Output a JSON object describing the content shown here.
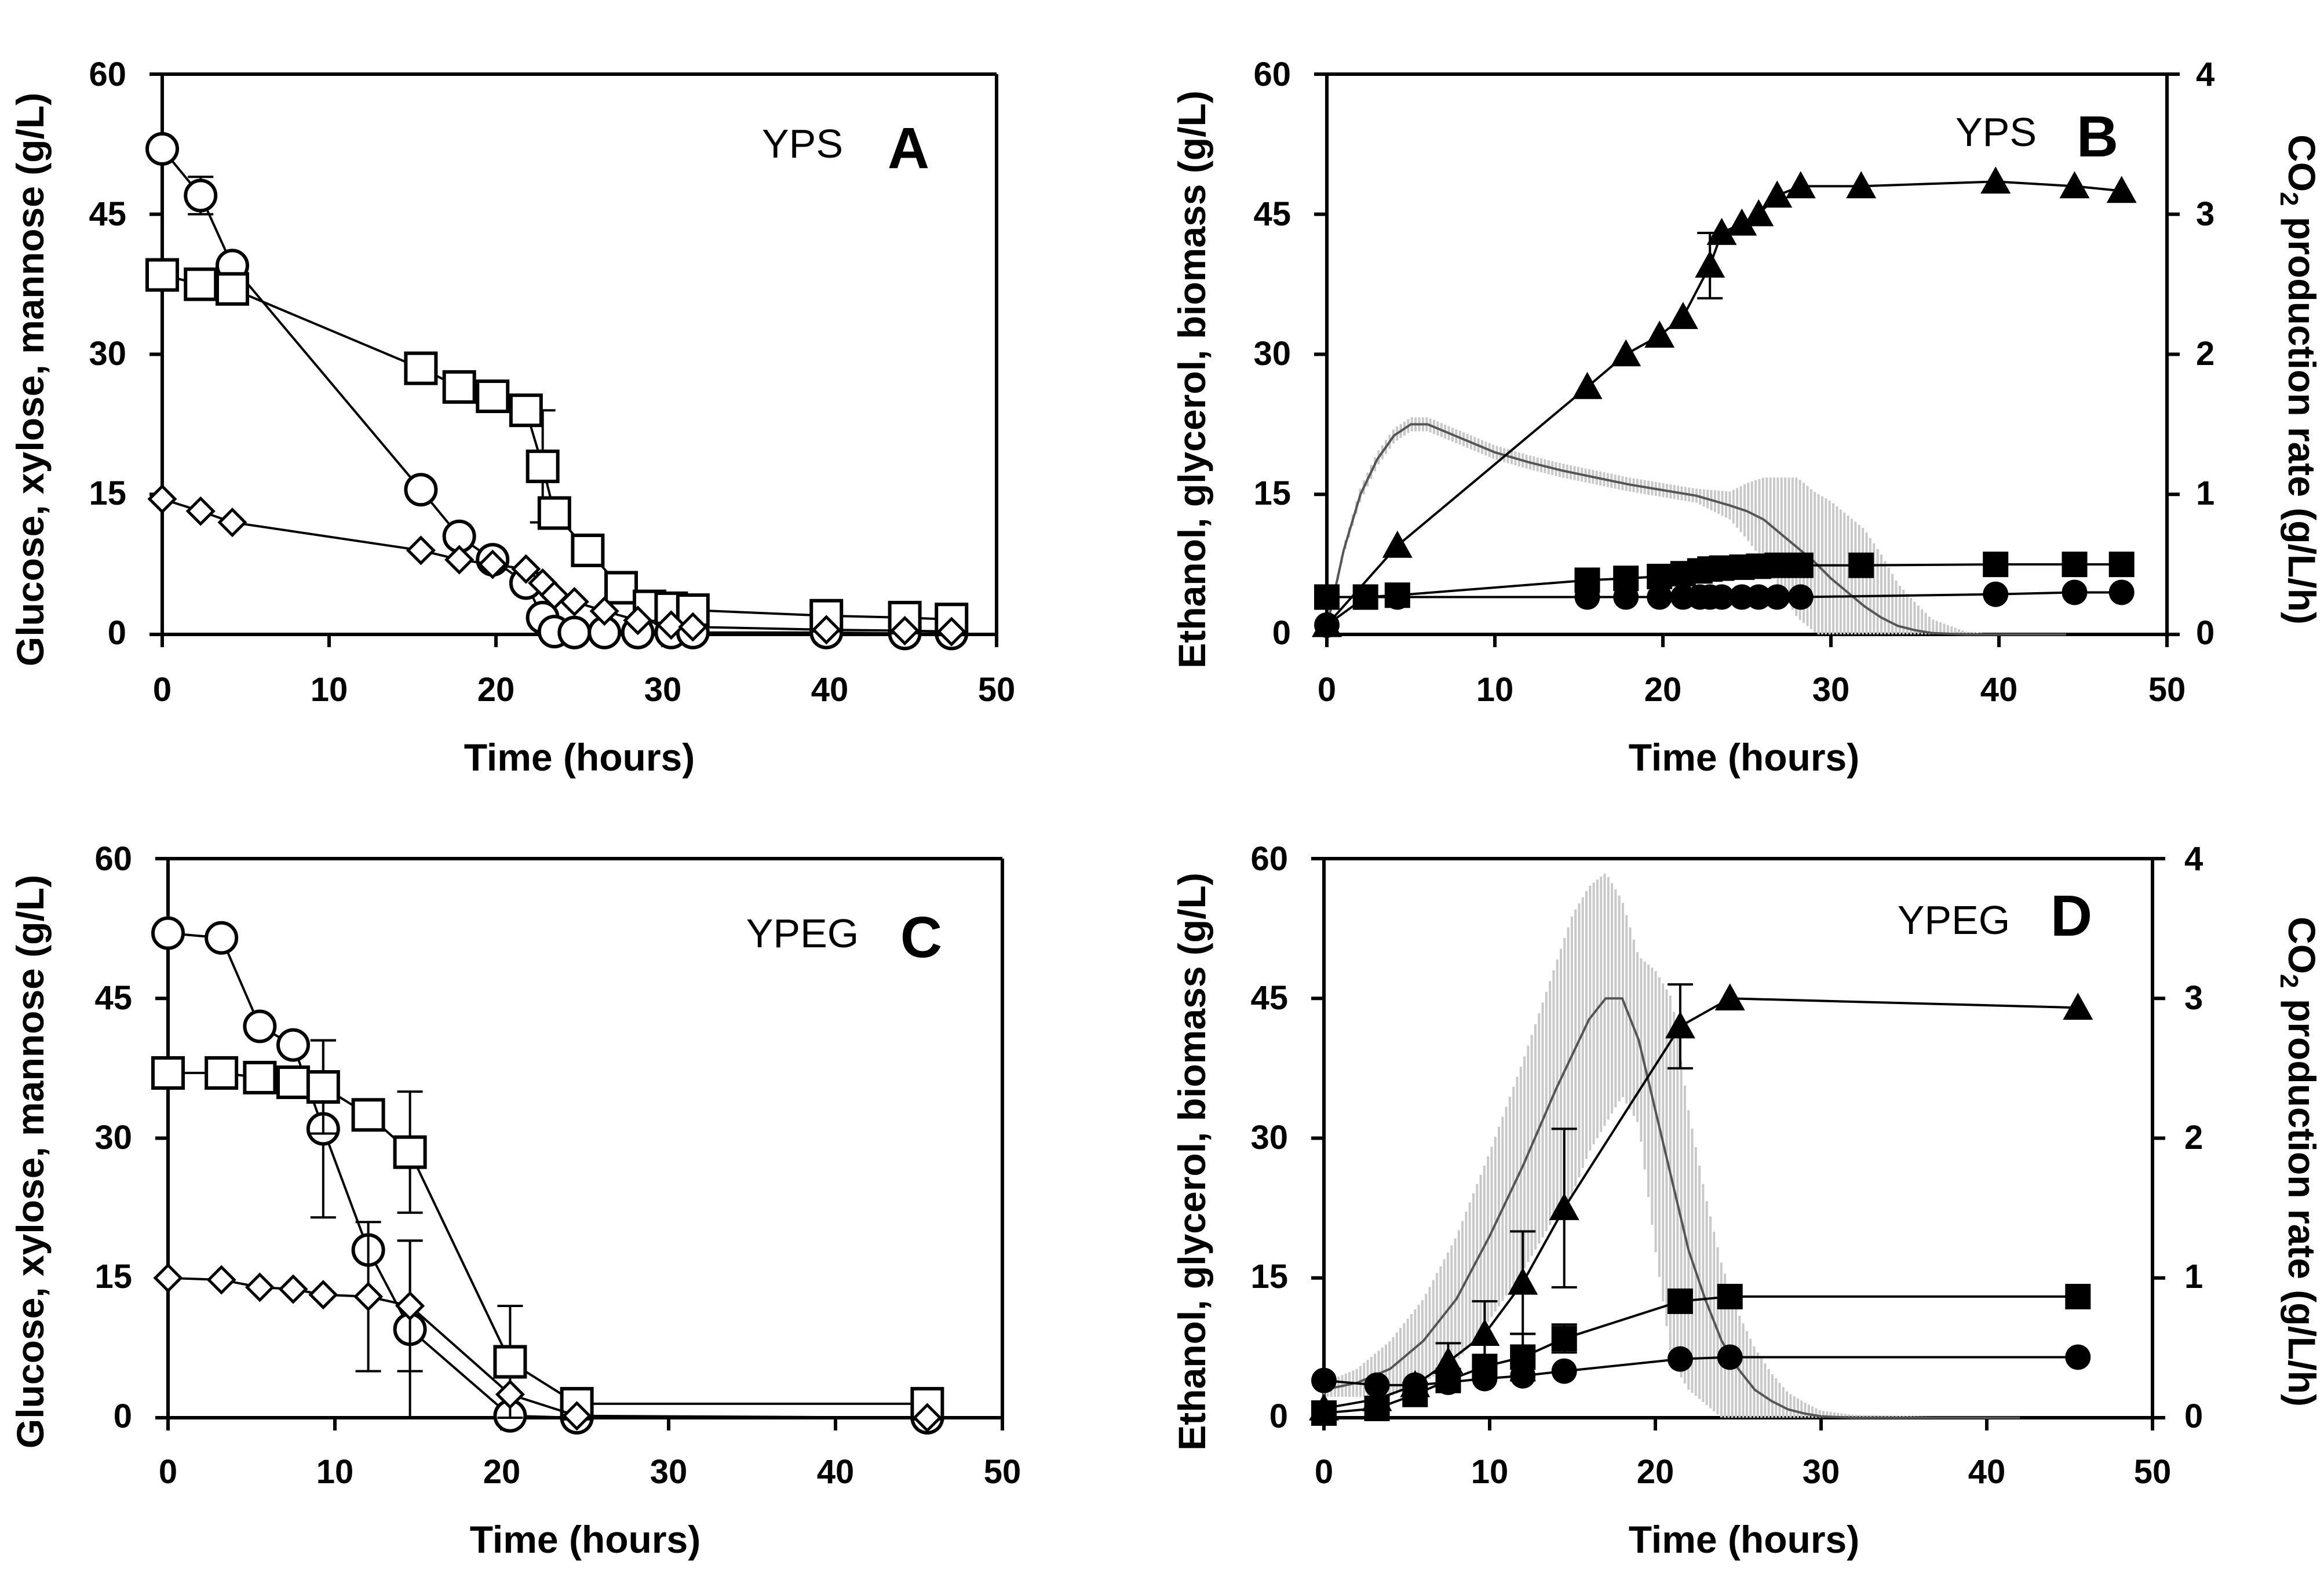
{
  "chart_data": [
    {
      "panel": "A",
      "type": "line",
      "medium": "YPS",
      "letter": "A",
      "xlabel": "Time (hours)",
      "ylabel": "Glucose, xylose, mannose (g/L)",
      "xlim": [
        0,
        50
      ],
      "ylim": [
        0,
        60
      ],
      "xticks": [
        "0",
        "10",
        "20",
        "30",
        "40",
        "50"
      ],
      "yticks": [
        "0",
        "15",
        "30",
        "45",
        "60"
      ],
      "series": [
        {
          "name": "Glucose",
          "marker": "circle-open",
          "x": [
            0,
            2.3,
            4.2,
            15.5,
            17.8,
            19.8,
            21.8,
            22.8,
            23.5,
            24.7,
            26.5,
            28.5,
            30.5,
            31.8,
            39.8,
            44.5,
            47.3
          ],
          "y": [
            52,
            47,
            39.5,
            15.5,
            10.5,
            8,
            5.5,
            1.8,
            0.3,
            0.2,
            0.2,
            0.2,
            0.2,
            0.2,
            0.2,
            0.1,
            0.1
          ],
          "err": [
            0,
            2,
            0,
            0,
            0,
            0,
            0,
            0,
            0,
            0,
            0,
            0,
            0,
            0,
            0,
            0,
            0
          ]
        },
        {
          "name": "Mannose",
          "marker": "square-open",
          "x": [
            0,
            2.3,
            4.2,
            15.5,
            17.8,
            19.8,
            21.8,
            22.8,
            23.5,
            25.5,
            27.5,
            29.2,
            30.5,
            31.8,
            39.8,
            44.5,
            47.3
          ],
          "y": [
            38.5,
            37.5,
            37,
            28.5,
            26.5,
            25.5,
            24,
            18,
            13,
            9,
            5,
            3,
            2.8,
            2.6,
            2,
            1.8,
            1.6
          ],
          "err": [
            0,
            0,
            0,
            0,
            0,
            0,
            0,
            6,
            0,
            0,
            0,
            0,
            0,
            0,
            0,
            0,
            0
          ]
        },
        {
          "name": "Xylose",
          "marker": "diamond-open",
          "x": [
            0,
            2.3,
            4.2,
            15.5,
            17.8,
            19.8,
            21.8,
            22.8,
            23.5,
            24.7,
            26.5,
            28.5,
            30.5,
            31.8,
            39.8,
            44.5,
            47.3
          ],
          "y": [
            14.5,
            13.2,
            12,
            9,
            8,
            7.5,
            7,
            5.5,
            4.2,
            3.5,
            2.5,
            1.5,
            1,
            0.8,
            0.5,
            0.4,
            0.3
          ],
          "err": [
            0,
            0,
            0,
            0,
            0,
            0,
            0,
            0,
            0,
            0,
            0,
            0,
            0,
            0,
            0,
            0,
            0
          ]
        }
      ]
    },
    {
      "panel": "B",
      "type": "line",
      "medium": "YPS",
      "letter": "B",
      "xlabel": "Time (hours)",
      "ylabel": "Ethanol, glycerol, biomass (g/L)",
      "y2label_pre": "CO",
      "y2label_sub": "2",
      "y2label_post": " production rate (g/L/h)",
      "xlim": [
        0,
        50
      ],
      "ylim": [
        0,
        60
      ],
      "y2lim": [
        0,
        4
      ],
      "xticks": [
        "0",
        "10",
        "20",
        "30",
        "40",
        "50"
      ],
      "yticks": [
        "0",
        "15",
        "30",
        "45",
        "60"
      ],
      "y2ticks": [
        "0",
        "1",
        "2",
        "3",
        "4"
      ],
      "series": [
        {
          "name": "Ethanol",
          "marker": "triangle-filled",
          "x": [
            0,
            4.2,
            15.5,
            17.8,
            19.8,
            21.2,
            22.8,
            23.5,
            24.7,
            25.7,
            26.8,
            28.2,
            31.8,
            39.8,
            44.5,
            47.3
          ],
          "y": [
            1,
            9.5,
            26.5,
            30,
            32,
            34,
            39.5,
            43,
            44,
            45,
            47,
            48,
            48,
            48.5,
            48,
            47.5
          ],
          "err": [
            0,
            0,
            0,
            0,
            0,
            0,
            3.5,
            0,
            0,
            0,
            0,
            0,
            0,
            0,
            0,
            0
          ]
        },
        {
          "name": "Biomass",
          "marker": "square-filled",
          "x": [
            0,
            2.3,
            4.2,
            15.5,
            17.8,
            19.8,
            21.2,
            22.2,
            22.8,
            23.5,
            24.7,
            25.7,
            26.8,
            28.2,
            31.8,
            39.8,
            44.5,
            47.3
          ],
          "y": [
            4,
            4,
            4.2,
            5.8,
            6,
            6.2,
            6.5,
            6.8,
            7,
            7.1,
            7.2,
            7.3,
            7.4,
            7.4,
            7.4,
            7.5,
            7.5,
            7.5
          ],
          "err": [
            0,
            0,
            0,
            0,
            0,
            0,
            0,
            0,
            0,
            0,
            0,
            0,
            0,
            0,
            0,
            0,
            0,
            0
          ]
        },
        {
          "name": "Glycerol",
          "marker": "circle-filled",
          "x": [
            0,
            2.3,
            4.2,
            15.5,
            17.8,
            19.8,
            21.2,
            22.2,
            22.8,
            23.5,
            24.7,
            25.7,
            26.8,
            28.2,
            39.8,
            44.5,
            47.3
          ],
          "y": [
            1,
            4,
            4,
            4,
            4,
            4,
            4,
            4,
            4,
            4,
            4,
            4,
            4,
            4,
            4.3,
            4.5,
            4.5
          ],
          "err": [
            0,
            0,
            0,
            0,
            0,
            0,
            0,
            0,
            0,
            0,
            0,
            0,
            0,
            0,
            0,
            0,
            0
          ]
        }
      ],
      "co2_rate": {
        "name": "CO2 production rate",
        "x": [
          0,
          1,
          2,
          3,
          4,
          5,
          6,
          7,
          8,
          10,
          12,
          14,
          16,
          18,
          20,
          22,
          24,
          25,
          26,
          27,
          28,
          29,
          30,
          31,
          32,
          33,
          34,
          35,
          36,
          38,
          40,
          44
        ],
        "y": [
          0.05,
          0.6,
          1.0,
          1.25,
          1.42,
          1.5,
          1.5,
          1.45,
          1.4,
          1.3,
          1.23,
          1.17,
          1.12,
          1.07,
          1.03,
          0.99,
          0.92,
          0.88,
          0.82,
          0.72,
          0.62,
          0.52,
          0.4,
          0.3,
          0.2,
          0.12,
          0.06,
          0.03,
          0.01,
          0,
          0,
          0
        ],
        "sd": [
          0,
          0.03,
          0.05,
          0.05,
          0.05,
          0.05,
          0.05,
          0.05,
          0.05,
          0.05,
          0.05,
          0.05,
          0.05,
          0.05,
          0.05,
          0.05,
          0.1,
          0.2,
          0.3,
          0.4,
          0.5,
          0.5,
          0.55,
          0.55,
          0.55,
          0.45,
          0.3,
          0.2,
          0.1,
          0.02,
          0,
          0
        ]
      }
    },
    {
      "panel": "C",
      "type": "line",
      "medium": "YPEG",
      "letter": "C",
      "xlabel": "Time (hours)",
      "ylabel": "Glucose, xylose, mannose (g/L)",
      "xlim": [
        0,
        50
      ],
      "ylim": [
        0,
        60
      ],
      "xticks": [
        "0",
        "10",
        "20",
        "30",
        "40",
        "50"
      ],
      "yticks": [
        "0",
        "15",
        "30",
        "45",
        "60"
      ],
      "series": [
        {
          "name": "Glucose",
          "marker": "circle-open",
          "x": [
            0,
            3.2,
            5.5,
            7.5,
            9.3,
            12,
            14.5,
            20.5,
            24.5,
            45.5
          ],
          "y": [
            52,
            51.5,
            42,
            40,
            31,
            18,
            9.5,
            0.2,
            0,
            0
          ],
          "err": [
            0,
            0,
            0,
            0,
            9.5,
            0,
            9.5,
            0,
            0,
            0
          ]
        },
        {
          "name": "Mannose",
          "marker": "square-open",
          "x": [
            0,
            3.2,
            5.5,
            7.5,
            9.3,
            12,
            14.5,
            20.5,
            24.5,
            45.5
          ],
          "y": [
            37,
            37,
            36.5,
            36,
            35.5,
            32.5,
            28.5,
            6,
            1.5,
            1.5
          ],
          "err": [
            0,
            0,
            0,
            0,
            5,
            0,
            6.5,
            6,
            0,
            0
          ]
        },
        {
          "name": "Xylose",
          "marker": "diamond-open",
          "x": [
            0,
            3.2,
            5.5,
            7.5,
            9.3,
            12,
            14.5,
            20.5,
            24.5,
            45.5
          ],
          "y": [
            15,
            14.8,
            14,
            13.8,
            13.2,
            13,
            12,
            2.5,
            0.2,
            0
          ],
          "err": [
            0,
            0,
            0,
            0,
            0,
            8,
            7,
            0,
            0,
            0
          ]
        }
      ]
    },
    {
      "panel": "D",
      "type": "line",
      "medium": "YPEG",
      "letter": "D",
      "xlabel": "Time (hours)",
      "ylabel": "Ethanol, glycerol, biomass (g/L)",
      "y2label_pre": "CO",
      "y2label_sub": "2",
      "y2label_post": " production rate (g/L/h)",
      "xlim": [
        0,
        50
      ],
      "ylim": [
        0,
        60
      ],
      "y2lim": [
        0,
        4
      ],
      "xticks": [
        "0",
        "10",
        "20",
        "30",
        "40",
        "50"
      ],
      "yticks": [
        "0",
        "15",
        "30",
        "45",
        "60"
      ],
      "y2ticks": [
        "0",
        "1",
        "2",
        "3",
        "4"
      ],
      "series": [
        {
          "name": "Ethanol",
          "marker": "triangle-filled",
          "x": [
            0,
            3.2,
            5.5,
            7.5,
            9.7,
            12,
            14.5,
            21.5,
            24.5,
            45.5
          ],
          "y": [
            1,
            2,
            3.5,
            6,
            9,
            14.5,
            22.5,
            42,
            45,
            44
          ],
          "err": [
            0,
            0,
            0,
            2,
            3.5,
            5.5,
            8.5,
            4.5,
            0,
            0
          ]
        },
        {
          "name": "Biomass",
          "marker": "square-filled",
          "x": [
            0,
            3.2,
            5.5,
            7.5,
            9.7,
            12,
            14.5,
            21.5,
            24.5,
            45.5
          ],
          "y": [
            0.5,
            1,
            2.5,
            4,
            5.5,
            6.5,
            8.5,
            12.5,
            13,
            13
          ],
          "err": [
            0,
            0,
            0,
            0,
            0,
            2.5,
            1.5,
            0,
            0,
            0
          ]
        },
        {
          "name": "Glycerol",
          "marker": "circle-filled",
          "x": [
            0,
            3.2,
            5.5,
            7.5,
            9.7,
            12,
            14.5,
            21.5,
            24.5,
            45.5
          ],
          "y": [
            4,
            3.5,
            3.5,
            3.8,
            4.2,
            4.5,
            5,
            6.3,
            6.5,
            6.5
          ],
          "err": [
            0,
            0,
            0,
            0,
            0,
            0,
            0,
            0,
            0,
            0
          ]
        }
      ],
      "co2_rate": {
        "name": "CO2 production rate",
        "x": [
          0,
          2,
          4,
          6,
          8,
          10,
          12,
          14,
          15,
          16,
          17,
          18,
          19,
          20,
          21,
          22,
          23,
          24,
          25,
          26,
          27,
          28,
          29,
          30,
          32,
          36,
          40,
          42
        ],
        "y": [
          0.2,
          0.25,
          0.35,
          0.55,
          0.85,
          1.3,
          1.8,
          2.35,
          2.6,
          2.85,
          3.0,
          3.0,
          2.7,
          2.2,
          1.7,
          1.2,
          0.85,
          0.55,
          0.35,
          0.2,
          0.12,
          0.06,
          0.03,
          0.01,
          0,
          0,
          0,
          0
        ],
        "sd": [
          0.05,
          0.1,
          0.2,
          0.3,
          0.45,
          0.6,
          0.75,
          0.9,
          1.0,
          0.95,
          0.9,
          0.7,
          0.6,
          1.0,
          1.3,
          1.0,
          0.75,
          0.55,
          0.4,
          0.3,
          0.2,
          0.12,
          0.08,
          0.04,
          0.02,
          0.01,
          0,
          0
        ]
      }
    }
  ]
}
